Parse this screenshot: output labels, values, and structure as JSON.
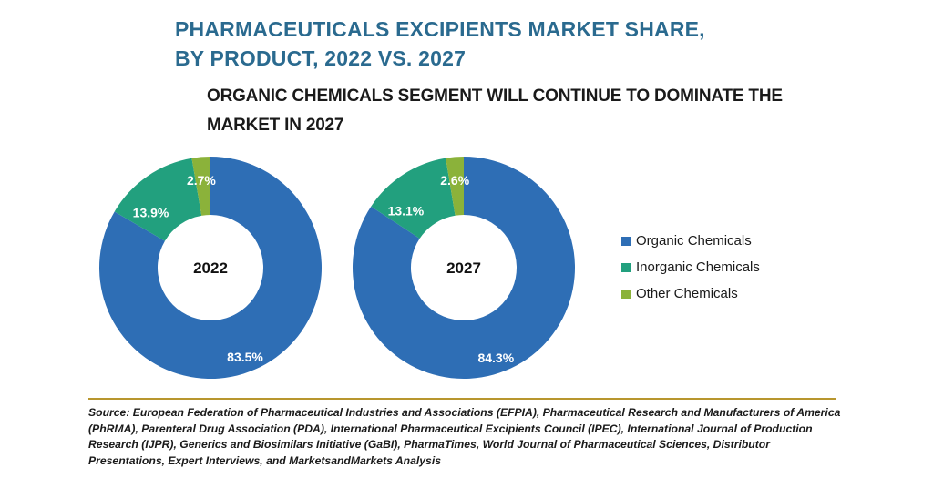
{
  "colors": {
    "title": "#2a6a8f",
    "organic": "#2e6eb5",
    "inorganic": "#22a07e",
    "other": "#8bb23a",
    "divider": "#b8962e"
  },
  "title_lines": [
    "PHARMACEUTICALS EXCIPIENTS MARKET SHARE,",
    "BY PRODUCT, 2022 VS. 2027"
  ],
  "subtitle": "ORGANIC CHEMICALS SEGMENT WILL CONTINUE TO DOMINATE THE MARKET IN 2027",
  "chart_data": {
    "type": "pie",
    "variant": "donut",
    "categories": [
      "Organic Chemicals",
      "Inorganic Chemicals",
      "Other Chemicals"
    ],
    "series": [
      {
        "name": "2022",
        "values": [
          83.5,
          13.9,
          2.7
        ],
        "labels": [
          "83.5%",
          "13.9%",
          "2.7%"
        ]
      },
      {
        "name": "2027",
        "values": [
          84.3,
          13.1,
          2.6
        ],
        "labels": [
          "84.3%",
          "13.1%",
          "2.6%"
        ]
      }
    ],
    "legend": "right"
  },
  "source": "Source: European Federation of Pharmaceutical Industries and Associations (EFPIA), Pharmaceutical Research and Manufacturers of America (PhRMA), Parenteral Drug Association (PDA), International Pharmaceutical Excipients Council (IPEC), International Journal of Production Research (IJPR), Generics and Biosimilars Initiative (GaBI), PharmaTimes, World Journal of Pharmaceutical Sciences, Distributor Presentations, Expert Interviews, and MarketsandMarkets Analysis"
}
